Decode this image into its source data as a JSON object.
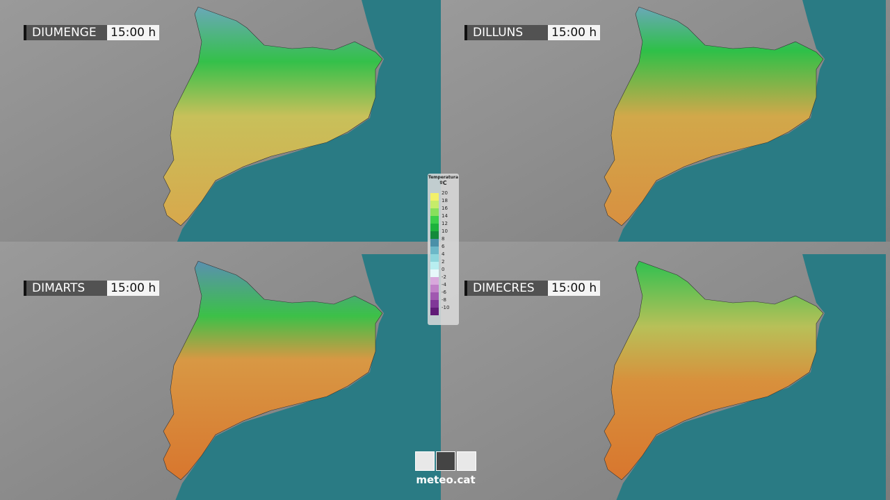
{
  "panels": [
    {
      "day": "DIUMENGE",
      "time": "15:00 h"
    },
    {
      "day": "DILLUNS",
      "time": "15:00 h"
    },
    {
      "day": "DIMARTS",
      "time": "15:00 h"
    },
    {
      "day": "DIMECRES",
      "time": "15:00 h"
    }
  ],
  "legend": {
    "title": "Temperatura",
    "unit": "ºC",
    "stops": [
      {
        "label": "20",
        "color": "#f2f06a"
      },
      {
        "label": "18",
        "color": "#c6ec6a"
      },
      {
        "label": "16",
        "color": "#88e05c"
      },
      {
        "label": "14",
        "color": "#3ccf4a"
      },
      {
        "label": "12",
        "color": "#1db23c"
      },
      {
        "label": "10",
        "color": "#138a3a"
      },
      {
        "label": "8",
        "color": "#4a90a8"
      },
      {
        "label": "6",
        "color": "#6cb8c8"
      },
      {
        "label": "4",
        "color": "#8ed6dc"
      },
      {
        "label": "2",
        "color": "#b8eef0"
      },
      {
        "label": "0",
        "color": "#e6f8fa"
      },
      {
        "label": "-2",
        "color": "#d8a8dc"
      },
      {
        "label": "-4",
        "color": "#c080c8"
      },
      {
        "label": "-6",
        "color": "#a058b0"
      },
      {
        "label": "-8",
        "color": "#803898"
      },
      {
        "label": "-10",
        "color": "#601c78"
      }
    ]
  },
  "logo": {
    "text": "meteo.cat"
  }
}
